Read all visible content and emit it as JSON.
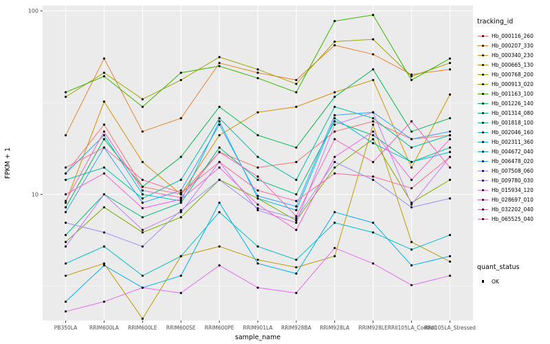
{
  "chart_data": {
    "type": "line",
    "title": "",
    "xlabel": "sample_name",
    "ylabel": "FPKM + 1",
    "y_scale": "log10",
    "ylim": [
      2.05,
      107
    ],
    "y_major_ticks": [
      10,
      100
    ],
    "y_minor_ticks": [
      3.162,
      31.62
    ],
    "panel_bg": "#EBEBEB",
    "grid_color": "#FFFFFF",
    "tick_color": "#333333",
    "axis_text_color": "#4D4D4D",
    "point_color": "#000000",
    "legend_position": "right",
    "categories": [
      "PB350LA",
      "RRIM600LA",
      "RRIM600LE",
      "RRIM600SE",
      "RRIM600PE",
      "RRIM901LA",
      "RRIM928BA",
      "RRIM928LA",
      "RRIM928LE",
      "RRII105LA_Control",
      "RRII105LA_Stressed"
    ],
    "series": [
      {
        "name": "Hb_000116_260",
        "color": "#F8766D",
        "values": [
          13,
          24,
          11,
          10,
          17,
          14,
          15,
          22,
          25,
          20,
          21
        ]
      },
      {
        "name": "Hb_000207_330",
        "color": "#EA8331",
        "values": [
          21,
          55,
          22,
          26,
          52,
          46,
          42,
          65,
          58,
          45,
          48
        ]
      },
      {
        "name": "Hb_000340_230",
        "color": "#D89000",
        "values": [
          9,
          32,
          15,
          10,
          21,
          28,
          30,
          36,
          42,
          14,
          35
        ]
      },
      {
        "name": "Hb_000665_130",
        "color": "#C09B00",
        "values": [
          3.6,
          4.2,
          2.1,
          4.6,
          5.2,
          4.4,
          4.0,
          4.6,
          24,
          5.5,
          4.3
        ]
      },
      {
        "name": "Hb_000768_200",
        "color": "#A3A500",
        "values": [
          34,
          46,
          33,
          42,
          56,
          48,
          40,
          68,
          70,
          44,
          52
        ]
      },
      {
        "name": "Hb_000913_020",
        "color": "#7CAE00",
        "values": [
          5.5,
          8.5,
          6.2,
          7.5,
          12,
          9.5,
          7.2,
          14,
          20,
          9,
          12
        ]
      },
      {
        "name": "Hb_001163_100",
        "color": "#39B600",
        "values": [
          36,
          44,
          30,
          46,
          50,
          43,
          36,
          88,
          95,
          42,
          55
        ]
      },
      {
        "name": "Hb_001226_140",
        "color": "#00BB4E",
        "values": [
          8.5,
          20,
          11,
          16,
          30,
          21,
          18,
          34,
          48,
          22,
          26
        ]
      },
      {
        "name": "Hb_001314_080",
        "color": "#00BF7D",
        "values": [
          6,
          10,
          7.5,
          9,
          18,
          12,
          10,
          25,
          21,
          15,
          18
        ]
      },
      {
        "name": "Hb_001818_100",
        "color": "#00C1A3",
        "values": [
          12,
          14,
          9.5,
          12,
          26,
          16,
          12,
          30,
          26,
          18,
          21
        ]
      },
      {
        "name": "Hb_002046_160",
        "color": "#00BFC4",
        "values": [
          4.2,
          5.2,
          3.6,
          4.6,
          8,
          5.2,
          4.4,
          7,
          6.2,
          5,
          6
        ]
      },
      {
        "name": "Hb_002311_360",
        "color": "#00BAE0",
        "values": [
          13,
          21,
          10,
          9.2,
          25,
          9.5,
          8.2,
          26,
          19,
          15,
          17
        ]
      },
      {
        "name": "Hb_004672_040",
        "color": "#00B0F6",
        "values": [
          2.6,
          4.1,
          3.1,
          3.6,
          9,
          4.2,
          3.7,
          8,
          7,
          4.1,
          4.6
        ]
      },
      {
        "name": "Hb_006478_020",
        "color": "#35A2FF",
        "values": [
          8,
          18,
          9,
          10.5,
          24,
          9.8,
          8.6,
          27,
          28,
          20,
          22
        ]
      },
      {
        "name": "Hb_007508_060",
        "color": "#9590FF",
        "values": [
          7,
          6.2,
          5.2,
          8.2,
          12,
          8.4,
          7.4,
          15,
          12,
          8.5,
          9.5
        ]
      },
      {
        "name": "Hb_009780_030",
        "color": "#C77CFF",
        "values": [
          5.2,
          10,
          6.4,
          8,
          15,
          8.2,
          7,
          24,
          28,
          8.8,
          16
        ]
      },
      {
        "name": "Hb_015934_120",
        "color": "#E76BF3",
        "values": [
          2.3,
          2.6,
          3.1,
          2.9,
          4.1,
          3.1,
          2.9,
          5.1,
          4.2,
          3.2,
          3.6
        ]
      },
      {
        "name": "Hb_028697_010",
        "color": "#FA62DB",
        "values": [
          10,
          13,
          8.4,
          9.4,
          14,
          8.8,
          6.4,
          16,
          22,
          12,
          20
        ]
      },
      {
        "name": "Hb_032202_040",
        "color": "#FF62BC",
        "values": [
          9.2,
          22,
          10.5,
          9.6,
          17,
          12.5,
          7.6,
          20,
          15,
          25,
          14
        ]
      },
      {
        "name": "Hb_065525_040",
        "color": "#FF6A98",
        "values": [
          14,
          18,
          12,
          10.2,
          15,
          10.5,
          9.2,
          13,
          12.5,
          10.8,
          16
        ]
      }
    ]
  },
  "legend": {
    "tracking_title": "tracking_id",
    "quant_title": "quant_status",
    "quant_items": [
      {
        "label": "OK"
      }
    ]
  }
}
